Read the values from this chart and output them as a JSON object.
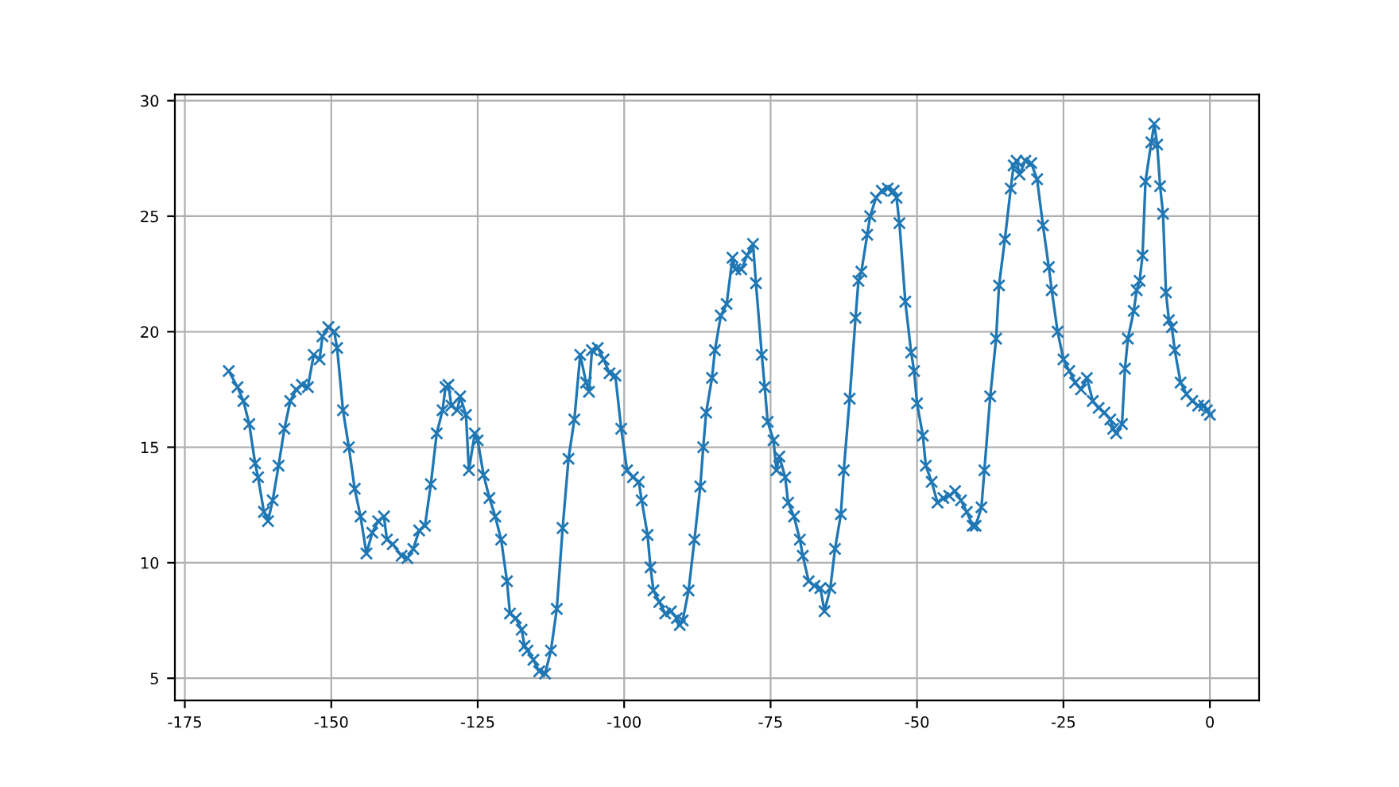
{
  "chart_data": {
    "type": "line",
    "xlim": [
      -176.7,
      8.4
    ],
    "ylim": [
      4.04,
      30.27
    ],
    "xticks": [
      -175,
      -150,
      -125,
      -100,
      -75,
      -50,
      -25,
      0
    ],
    "yticks": [
      5,
      10,
      15,
      20,
      25,
      30
    ],
    "grid": true,
    "marker": "cross",
    "line_style": "solid",
    "series": [
      {
        "color": "#1f77b4",
        "x": [
          -167.5,
          -166,
          -165,
          -164,
          -163,
          -162.5,
          -161.5,
          -160.8,
          -160,
          -159,
          -158,
          -157,
          -156,
          -155,
          -154,
          -153,
          -152,
          -151.5,
          -150.5,
          -149.5,
          -149,
          -148,
          -147,
          -146,
          -145,
          -144,
          -143,
          -142,
          -141,
          -140.5,
          -139.5,
          -138,
          -137,
          -136,
          -135,
          -134,
          -133,
          -132,
          -131,
          -130.5,
          -130,
          -129.5,
          -128.5,
          -128,
          -127,
          -126.5,
          -125.5,
          -125,
          -124,
          -123,
          -122,
          -121,
          -120,
          -119.5,
          -118.5,
          -117.5,
          -117,
          -116.5,
          -115.5,
          -114.5,
          -113.5,
          -112.5,
          -111.5,
          -110.5,
          -109.5,
          -108.5,
          -107.5,
          -106.5,
          -106,
          -105.5,
          -104.5,
          -103.5,
          -102.5,
          -101.5,
          -100.5,
          -99.5,
          -98.5,
          -97.5,
          -97,
          -96,
          -95.5,
          -95,
          -94,
          -93,
          -92,
          -91,
          -90.5,
          -90,
          -89,
          -88,
          -87,
          -86.5,
          -86,
          -85,
          -84.5,
          -83.5,
          -82.5,
          -81.5,
          -81,
          -80,
          -79,
          -78,
          -77.5,
          -76.5,
          -76,
          -75.5,
          -74.5,
          -74,
          -73.5,
          -72.5,
          -72,
          -71,
          -70,
          -69.5,
          -68.5,
          -67.5,
          -66.5,
          -65.8,
          -64.8,
          -64,
          -63,
          -62.5,
          -61.5,
          -60.5,
          -60,
          -59.5,
          -58.5,
          -58,
          -57,
          -56,
          -55,
          -54,
          -53.5,
          -53,
          -52,
          -51,
          -50.5,
          -50,
          -49,
          -48.5,
          -47.5,
          -46.5,
          -45.5,
          -44.5,
          -43.5,
          -42.5,
          -41.5,
          -40.5,
          -40,
          -39,
          -38.5,
          -37.5,
          -36.5,
          -36,
          -35,
          -34,
          -33.5,
          -33,
          -32.5,
          -31.5,
          -30.5,
          -29.5,
          -28.5,
          -27.5,
          -27,
          -26,
          -25,
          -24,
          -23,
          -22,
          -21,
          -20,
          -19,
          -18,
          -17,
          -16.5,
          -16,
          -15,
          -14.5,
          -14,
          -13,
          -12.5,
          -12,
          -11.5,
          -11,
          -10,
          -9.5,
          -9,
          -8.5,
          -8,
          -7.5,
          -7,
          -6.5,
          -6,
          -5,
          -4,
          -3,
          -2,
          -1,
          -0.5,
          0
        ],
        "values": [
          18.3,
          17.6,
          17,
          16,
          14.3,
          13.7,
          12.2,
          11.8,
          12.7,
          14.2,
          15.8,
          17,
          17.5,
          17.7,
          17.6,
          19,
          18.8,
          19.8,
          20.2,
          20.0,
          19.3,
          16.6,
          15,
          13.2,
          12,
          10.4,
          11.3,
          11.8,
          12.0,
          11,
          10.8,
          10.3,
          10.2,
          10.6,
          11.4,
          11.6,
          13.4,
          15.6,
          16.6,
          17.6,
          17.7,
          16.8,
          16.6,
          17.2,
          16.4,
          14,
          15.6,
          15.3,
          13.8,
          12.8,
          12.0,
          11,
          9.2,
          7.8,
          7.6,
          7.1,
          6.4,
          6.2,
          5.8,
          5.3,
          5.2,
          6.2,
          8.0,
          11.5,
          14.5,
          16.2,
          19.0,
          17.8,
          17.4,
          19.2,
          19.3,
          18.8,
          18.2,
          18.1,
          15.8,
          14.0,
          13.7,
          13.5,
          12.7,
          11.2,
          9.8,
          8.8,
          8.3,
          7.8,
          7.9,
          7.6,
          7.3,
          7.5,
          8.8,
          11.0,
          13.3,
          15.0,
          16.5,
          18,
          19.2,
          20.7,
          21.2,
          23.2,
          22.7,
          22.7,
          23.3,
          23.8,
          22.1,
          19.0,
          17.6,
          16.1,
          15.3,
          14.0,
          14.6,
          13.7,
          12.6,
          12.0,
          11.0,
          10.3,
          9.2,
          9.0,
          8.9,
          7.9,
          8.9,
          10.6,
          12.1,
          14.0,
          17.1,
          20.6,
          22.2,
          22.6,
          24.2,
          25.0,
          25.8,
          26.1,
          26.2,
          26.1,
          25.8,
          24.7,
          21.3,
          19.1,
          18.3,
          16.9,
          15.5,
          14.2,
          13.5,
          12.6,
          12.8,
          12.9,
          13.1,
          12.7,
          12.2,
          11.6,
          11.6,
          12.4,
          14.0,
          17.2,
          19.7,
          22.0,
          24.0,
          26.2,
          27.2,
          27.4,
          26.8,
          27.4,
          27.3,
          26.6,
          24.6,
          22.8,
          21.8,
          20.0,
          18.8,
          18.3,
          17.8,
          17.5,
          18.0,
          17.0,
          16.7,
          16.5,
          16.2,
          15.8,
          15.6,
          16.0,
          18.4,
          19.7,
          20.9,
          21.8,
          22.2,
          23.3,
          26.5,
          28.2,
          29.0,
          28.1,
          26.3,
          25.1,
          21.7,
          20.5,
          20.2,
          19.2,
          17.8,
          17.3,
          17.0,
          16.8,
          16.8,
          16.6,
          16.4
        ]
      }
    ]
  }
}
